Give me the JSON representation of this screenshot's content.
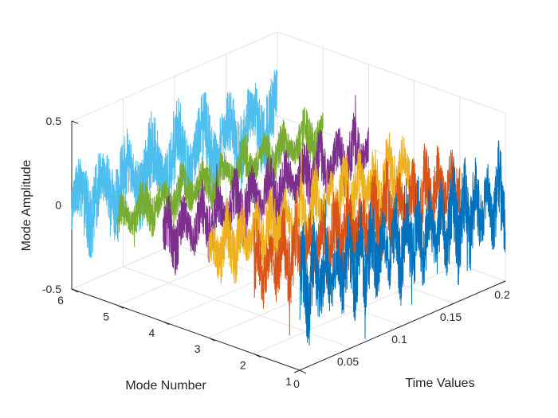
{
  "chart_data": {
    "type": "line",
    "projection": "3d-waterfall",
    "title": "",
    "xlabel": "Time Values",
    "ylabel": "Mode Number",
    "zlabel": "Mode Amplitude",
    "xlim": [
      0,
      0.2
    ],
    "ylim": [
      1,
      6
    ],
    "zlim": [
      -0.5,
      0.5
    ],
    "x_ticks": [
      "0",
      "0.05",
      "0.1",
      "0.15",
      "0.2"
    ],
    "x_tick_values": [
      0,
      0.05,
      0.1,
      0.15,
      0.2
    ],
    "y_ticks": [
      "1",
      "2",
      "3",
      "4",
      "5",
      "6"
    ],
    "y_tick_values": [
      1,
      2,
      3,
      4,
      5,
      6
    ],
    "z_ticks": [
      "-0.5",
      "0",
      "0.5"
    ],
    "z_tick_values": [
      -0.5,
      0,
      0.5
    ],
    "grid": true,
    "series": [
      {
        "name": "Mode 1",
        "mode": 1,
        "color": "#0072BD",
        "amplitude": 0.3,
        "time_range": [
          0,
          0.2
        ]
      },
      {
        "name": "Mode 2",
        "mode": 2,
        "color": "#D95319",
        "amplitude": 0.25,
        "time_range": [
          0,
          0.2
        ]
      },
      {
        "name": "Mode 3",
        "mode": 3,
        "color": "#EDB120",
        "amplitude": 0.22,
        "time_range": [
          0,
          0.2
        ]
      },
      {
        "name": "Mode 4",
        "mode": 4,
        "color": "#7E2F8E",
        "amplitude": 0.2,
        "time_range": [
          0,
          0.2
        ]
      },
      {
        "name": "Mode 5",
        "mode": 5,
        "color": "#77AC30",
        "amplitude": 0.15,
        "time_range": [
          0,
          0.2
        ]
      },
      {
        "name": "Mode 6",
        "mode": 6,
        "color": "#4DBEEE",
        "amplitude": 0.28,
        "time_range": [
          0,
          0.2
        ]
      }
    ]
  }
}
